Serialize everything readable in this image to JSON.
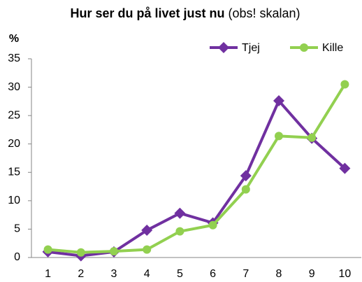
{
  "chart_data": {
    "type": "line",
    "title": "Hur ser du på livet just nu",
    "subtitle": "(obs! skalan)",
    "y_label": "%",
    "categories": [
      "1",
      "2",
      "3",
      "4",
      "5",
      "6",
      "7",
      "8",
      "9",
      "10"
    ],
    "series": [
      {
        "name": "Tjej",
        "color": "#7030a0",
        "marker": "diamond",
        "values": [
          1.0,
          0.3,
          1.0,
          4.8,
          7.8,
          6.1,
          14.4,
          27.6,
          21.0,
          15.7
        ]
      },
      {
        "name": "Kille",
        "color": "#92d050",
        "marker": "circle",
        "values": [
          1.4,
          0.9,
          1.1,
          1.4,
          4.6,
          5.7,
          12.0,
          21.4,
          21.1,
          30.5
        ]
      }
    ],
    "ylim": [
      0,
      35
    ],
    "yticks": [
      0,
      5,
      10,
      15,
      20,
      25,
      30,
      35
    ],
    "grid": false,
    "legend": "top-right"
  }
}
